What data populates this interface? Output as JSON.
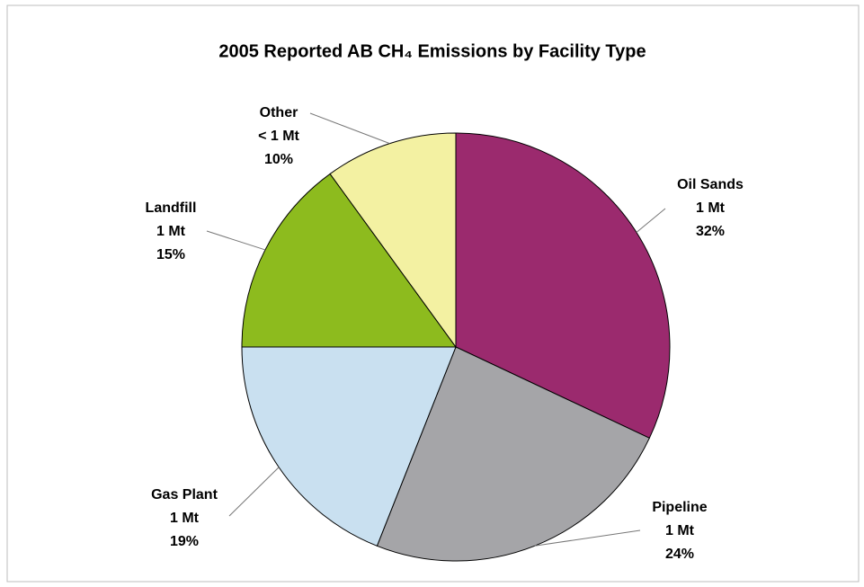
{
  "chart_data": {
    "type": "pie",
    "title": "2005 Reported AB CH₄ Emissions by Facility Type",
    "categories": [
      "Oil Sands",
      "Pipeline",
      "Gas Plant",
      "Landfill",
      "Other"
    ],
    "values": [
      32,
      24,
      19,
      15,
      10
    ],
    "value_labels": [
      "32%",
      "24%",
      "19%",
      "15%",
      "10%"
    ],
    "amounts": [
      "1 Mt",
      "1 Mt",
      "1 Mt",
      "1 Mt",
      "< 1 Mt"
    ],
    "colors": [
      "#9b2a6e",
      "#a5a5a8",
      "#c9e0f0",
      "#8dbb1e",
      "#f3f1a2"
    ]
  }
}
